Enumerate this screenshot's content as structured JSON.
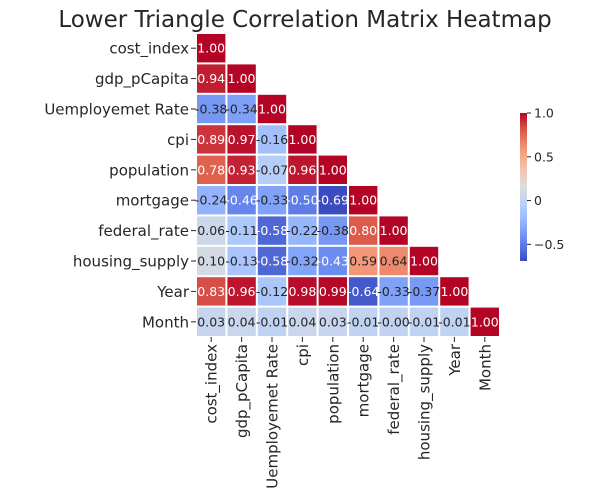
{
  "chart_data": {
    "type": "heatmap",
    "title": "Lower Triangle Correlation Matrix Heatmap",
    "variables": [
      "cost_index",
      "gdp_pCapita",
      "Uemployemet Rate",
      "cpi",
      "population",
      "mortgage",
      "federal_rate",
      "housing_supply",
      "Year",
      "Month"
    ],
    "matrix": [
      [
        1.0
      ],
      [
        0.94,
        1.0
      ],
      [
        -0.38,
        -0.34,
        1.0
      ],
      [
        0.89,
        0.97,
        -0.16,
        1.0
      ],
      [
        0.78,
        0.93,
        -0.07,
        0.96,
        1.0
      ],
      [
        -0.24,
        -0.46,
        -0.33,
        -0.5,
        -0.69,
        1.0
      ],
      [
        0.06,
        -0.11,
        -0.58,
        -0.22,
        -0.38,
        0.8,
        1.0
      ],
      [
        0.1,
        -0.13,
        -0.58,
        -0.32,
        -0.43,
        0.59,
        0.64,
        1.0
      ],
      [
        0.83,
        0.96,
        -0.12,
        0.98,
        0.99,
        -0.64,
        -0.33,
        -0.37,
        1.0
      ],
      [
        0.03,
        0.04,
        -0.01,
        0.04,
        0.03,
        -0.01,
        -0.0,
        -0.01,
        -0.01,
        1.0
      ]
    ],
    "cell_labels": [
      [
        "1.00"
      ],
      [
        "0.94",
        "1.00"
      ],
      [
        "-0.38",
        "-0.34",
        "1.00"
      ],
      [
        "0.89",
        "0.97",
        "-0.16",
        "1.00"
      ],
      [
        "0.78",
        "0.93",
        "-0.07",
        "0.96",
        "1.00"
      ],
      [
        "-0.24",
        "-0.46",
        "-0.33",
        "-0.50",
        "-0.69",
        "1.00"
      ],
      [
        "0.06",
        "-0.11",
        "-0.58",
        "-0.22",
        "-0.38",
        "0.80",
        "1.00"
      ],
      [
        "0.10",
        "-0.13",
        "-0.58",
        "-0.32",
        "-0.43",
        "0.59",
        "0.64",
        "1.00"
      ],
      [
        "0.83",
        "0.96",
        "-0.12",
        "0.98",
        "0.99",
        "-0.64",
        "-0.33",
        "-0.37",
        "1.00"
      ],
      [
        "0.03",
        "0.04",
        "-0.01",
        "0.04",
        "0.03",
        "-0.01",
        "-0.00",
        "-0.01",
        "-0.01",
        "1.00"
      ]
    ],
    "colormap": "coolwarm",
    "vmin": -0.69,
    "vmax": 1.0,
    "colorbar_ticks": [
      1.0,
      0.5,
      0.0,
      -0.5
    ],
    "colorbar_tick_labels": [
      "1.0",
      "0.5",
      "0",
      "−0.5"
    ],
    "grid": false
  }
}
